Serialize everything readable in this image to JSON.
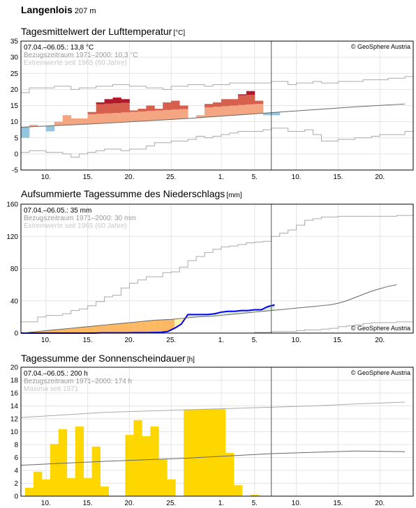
{
  "station": {
    "name": "Langenlois",
    "altitude": "207 m"
  },
  "shared_x": {
    "tick_labels": [
      "10.",
      "15.",
      "20.",
      "25.",
      "1.",
      "5.",
      "10.",
      "15.",
      "20."
    ],
    "tick_days": [
      3,
      8,
      13,
      18,
      24,
      28,
      33,
      38,
      43
    ],
    "today_day": 30
  },
  "copyright": "© GeoSphere Austria",
  "colors": {
    "grid": "#e4e4e4",
    "frame": "#000000",
    "envelope": "#aaaaaa",
    "normal": "#666666",
    "temp_above_norm": "#f4a582",
    "temp_warm": "#d6604d",
    "temp_record": "#b2182b",
    "temp_below_norm": "#92c5de",
    "precip_deficit": "#fff3b0",
    "precip_dry_strong": "#fdb863",
    "precip_surplus": "#d9ecd8",
    "precip_cum_line": "#0000ff",
    "sun": "#ffd700"
  },
  "chart_data": [
    {
      "id": "temperature",
      "type": "area",
      "title": "Tagesmittelwert der Lufttemperatur",
      "unit": "[°C]",
      "ylim": [
        -5,
        35
      ],
      "yticks": [
        -5,
        0,
        5,
        10,
        15,
        20,
        25,
        30,
        35
      ],
      "info": [
        "07.04.–06.05.: 13,8 °C",
        "Bezugszeitraum 1971–2000: 10,3 °C",
        "Extremwerte seit 1965 (60 Jahre)"
      ],
      "normal": {
        "x": [
          0,
          10,
          20,
          30,
          40,
          46
        ],
        "y": [
          8.3,
          9.5,
          11.0,
          12.8,
          14.6,
          15.5
        ]
      },
      "extreme_max": [
        19,
        20.5,
        20.5,
        20.5,
        21,
        21,
        20,
        20.5,
        20.5,
        21,
        21,
        21.5,
        21.5,
        21,
        21,
        20.5,
        20.5,
        20,
        21,
        21,
        21.5,
        21.5,
        21,
        21.5,
        21.5,
        22,
        22,
        22,
        22,
        22,
        22.5,
        22.5,
        21.5,
        22,
        22,
        22.5,
        22,
        22,
        22.5,
        22.5,
        22.5,
        23,
        23,
        23,
        23.5,
        23.5,
        24
      ],
      "extreme_min": [
        0.5,
        1,
        1,
        0.5,
        0.5,
        0,
        -1,
        0,
        0.5,
        1,
        1.5,
        1.5,
        1,
        1.5,
        1.5,
        2.5,
        3.5,
        3.5,
        4,
        4,
        4.5,
        5.5,
        5,
        5.5,
        6,
        6.5,
        7,
        7,
        7,
        7.5,
        8,
        8,
        7,
        7,
        7.5,
        6,
        4,
        4,
        4.5,
        4.5,
        5,
        5,
        5.5,
        6,
        6,
        6,
        7
      ],
      "daily_mean": [
        5,
        9,
        8.5,
        7,
        10,
        12,
        11,
        11,
        13,
        16,
        17,
        17.5,
        17,
        13.5,
        14,
        15,
        14,
        16,
        16.5,
        15,
        11,
        12,
        15.5,
        16,
        17,
        17,
        18.5,
        19.5,
        16.5,
        12,
        12
      ],
      "first_day_plotted": 0,
      "data_first_day": 0,
      "data_last_day": 30
    },
    {
      "id": "precipitation",
      "type": "area",
      "title": "Aufsummierte Tagessumme des Niederschlags",
      "unit": "[mm]",
      "ylim": [
        0,
        160
      ],
      "yticks": [
        0,
        40,
        80,
        120,
        160
      ],
      "info": [
        "07.04.–06.05.: 35 mm",
        "Bezugszeitraum 1971–2000: 30 mm",
        "Extremwerte seit 1965 (60 Jahre)"
      ],
      "cumulative": [
        0,
        0,
        0,
        0,
        0,
        0,
        0,
        0,
        0,
        0,
        0,
        0,
        0.3,
        0.3,
        0.3,
        0.3,
        0.3,
        0.5,
        0.5,
        0.5,
        0.8,
        1,
        2,
        6,
        11,
        23,
        23,
        23,
        23,
        24,
        26,
        27,
        27,
        28,
        28,
        29,
        29,
        33,
        35
      ],
      "cumulative_normal": [
        0,
        1,
        2,
        3,
        4,
        5,
        6,
        7,
        8,
        9,
        10,
        11,
        12,
        13,
        14,
        15,
        16,
        16.5,
        17,
        18,
        19,
        20,
        20.5,
        21,
        22,
        23,
        24,
        25,
        26,
        27,
        28,
        29,
        30,
        31,
        32,
        33,
        34,
        35,
        37,
        40,
        44,
        48,
        52,
        55,
        58,
        60
      ],
      "extreme_max": [
        14,
        14,
        20,
        22,
        22,
        24,
        28,
        30,
        34,
        39,
        45,
        47,
        56,
        62,
        66,
        70,
        70,
        75,
        76,
        82,
        90,
        95,
        100,
        104,
        107,
        108,
        110,
        112,
        113,
        114,
        120,
        124,
        128,
        134,
        140,
        142,
        144,
        144,
        145,
        145,
        145,
        145,
        145,
        145,
        145,
        146,
        146
      ],
      "extreme_min": [
        0,
        0,
        0,
        0,
        0,
        0,
        0,
        0,
        0,
        0,
        0,
        0,
        0,
        0,
        0,
        0,
        0,
        0,
        0,
        0,
        0,
        0,
        0,
        0,
        0,
        0,
        0,
        0,
        1,
        1,
        2,
        2,
        2,
        3,
        4,
        4,
        5,
        6,
        8,
        9,
        10,
        12,
        13,
        13,
        13,
        14,
        14
      ]
    },
    {
      "id": "sunshine",
      "type": "bar",
      "title": "Tagessumme der Sonnenscheindauer",
      "unit": "[h]",
      "ylim": [
        0,
        20
      ],
      "yticks": [
        0,
        2,
        4,
        6,
        8,
        10,
        12,
        14,
        16,
        18,
        20
      ],
      "info": [
        "07.04.–06.05.: 200 h",
        "Bezugszeitraum 1971–2000: 174 h",
        "Maxima seit 1971"
      ],
      "values": [
        1.3,
        3.8,
        2.6,
        8.1,
        10.4,
        2.8,
        10.8,
        2.8,
        7.7,
        1.5,
        0,
        0,
        9.5,
        11.8,
        9.3,
        10.8,
        5.7,
        2.6,
        0,
        13.4,
        13.4,
        13.5,
        13.5,
        13.5,
        6.7,
        1.7,
        0,
        0.2
      ],
      "values_first_day": 1,
      "normal": {
        "x": [
          0,
          10,
          20,
          30,
          40,
          46
        ],
        "y": [
          4.8,
          5.4,
          5.9,
          6.6,
          7.0,
          6.9
        ]
      },
      "maxima": {
        "x": [
          0,
          5,
          10,
          15,
          20,
          25,
          30,
          35,
          40,
          46
        ],
        "y": [
          12.2,
          12.6,
          13.0,
          13.2,
          13.4,
          13.6,
          13.8,
          14.0,
          14.3,
          14.6
        ]
      }
    }
  ]
}
